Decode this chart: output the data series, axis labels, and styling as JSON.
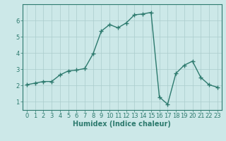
{
  "x": [
    0,
    1,
    2,
    3,
    4,
    5,
    6,
    7,
    8,
    9,
    10,
    11,
    12,
    13,
    14,
    15,
    16,
    17,
    18,
    19,
    20,
    21,
    22,
    23
  ],
  "y": [
    2.05,
    2.15,
    2.25,
    2.25,
    2.65,
    2.9,
    2.95,
    3.05,
    3.95,
    5.35,
    5.75,
    5.55,
    5.85,
    6.35,
    6.4,
    6.5,
    1.3,
    0.85,
    2.75,
    3.25,
    3.5,
    2.5,
    2.05,
    1.9
  ],
  "line_color": "#2d7a6e",
  "marker": "+",
  "marker_size": 4,
  "linewidth": 1.0,
  "bg_color": "#cce8e8",
  "grid_color": "#aacccc",
  "xlabel": "Humidex (Indice chaleur)",
  "xlabel_fontsize": 7,
  "tick_fontsize": 6,
  "ylim": [
    0.5,
    7.0
  ],
  "xlim": [
    -0.5,
    23.5
  ],
  "yticks": [
    1,
    2,
    3,
    4,
    5,
    6
  ],
  "xticks": [
    0,
    1,
    2,
    3,
    4,
    5,
    6,
    7,
    8,
    9,
    10,
    11,
    12,
    13,
    14,
    15,
    16,
    17,
    18,
    19,
    20,
    21,
    22,
    23
  ],
  "xtick_labels": [
    "0",
    "1",
    "2",
    "3",
    "4",
    "5",
    "6",
    "7",
    "8",
    "9",
    "10",
    "11",
    "12",
    "13",
    "14",
    "15",
    "16",
    "17",
    "18",
    "19",
    "20",
    "21",
    "22",
    "23"
  ]
}
